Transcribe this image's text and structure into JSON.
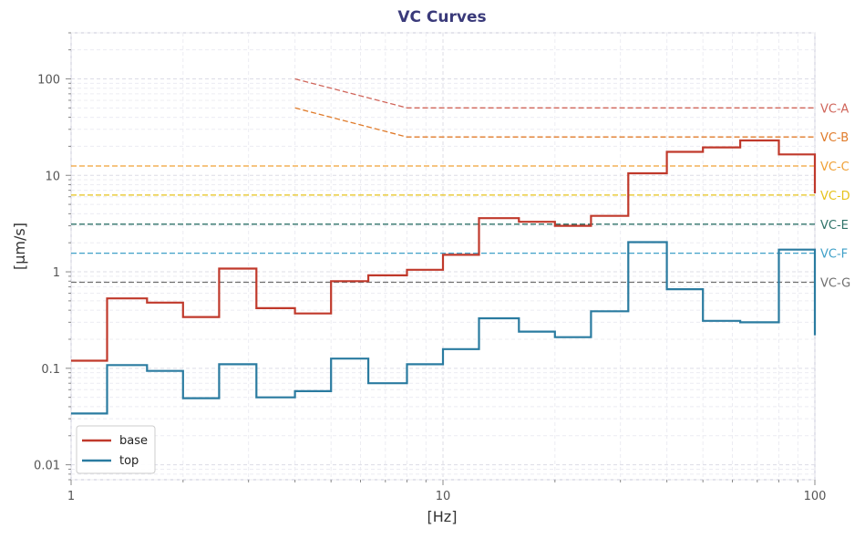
{
  "chart_data": {
    "type": "line",
    "title": "VC Curves",
    "xlabel": "[Hz]",
    "ylabel": "[µm/s]",
    "xscale": "log",
    "yscale": "log",
    "xlim": [
      1,
      100
    ],
    "ylim": [
      0.007,
      300
    ],
    "xticks": [
      {
        "value": 1,
        "label": "1"
      },
      {
        "value": 10,
        "label": "10"
      },
      {
        "value": 100,
        "label": "100"
      }
    ],
    "yticks": [
      {
        "value": 0.01,
        "label": "0.01"
      },
      {
        "value": 0.1,
        "label": "0.1"
      },
      {
        "value": 1,
        "label": "1"
      },
      {
        "value": 10,
        "label": "10"
      },
      {
        "value": 100,
        "label": "100"
      }
    ],
    "grid": true,
    "legend_position": "bottom-left",
    "band_edges": [
      1,
      1.25,
      1.6,
      2,
      2.5,
      3.15,
      4,
      5,
      6.3,
      8,
      10,
      12.5,
      16,
      20,
      25,
      31.5,
      40,
      50,
      63,
      80,
      100
    ],
    "series": [
      {
        "name": "base",
        "color": "#c0392b",
        "values": [
          0.12,
          0.53,
          0.48,
          0.34,
          1.08,
          0.42,
          0.37,
          0.8,
          0.92,
          1.05,
          1.5,
          3.6,
          3.3,
          3.0,
          3.8,
          10.5,
          17.5,
          19.5,
          23.0,
          16.5
        ],
        "end_value": 6.5
      },
      {
        "name": "top",
        "color": "#2a7ba0",
        "values": [
          0.034,
          0.108,
          0.094,
          0.049,
          0.11,
          0.05,
          0.058,
          0.126,
          0.07,
          0.11,
          0.158,
          0.33,
          0.24,
          0.21,
          0.39,
          2.03,
          0.66,
          0.31,
          0.3,
          1.7
        ],
        "end_value": 0.22
      }
    ],
    "vc_curves": [
      {
        "label": "VC-A",
        "color": "#d0655a",
        "low_freq_value": 100,
        "flat_value": 50
      },
      {
        "label": "VC-B",
        "color": "#e07b2a",
        "low_freq_value": 50,
        "flat_value": 25
      },
      {
        "label": "VC-C",
        "color": "#f0a035",
        "flat_value": 12.5
      },
      {
        "label": "VC-D",
        "color": "#e6c21a",
        "flat_value": 6.25
      },
      {
        "label": "VC-E",
        "color": "#2e7268",
        "flat_value": 3.12
      },
      {
        "label": "VC-F",
        "color": "#3fa0c8",
        "flat_value": 1.56
      },
      {
        "label": "VC-G",
        "color": "#6f6f6f",
        "flat_value": 0.78
      }
    ]
  }
}
